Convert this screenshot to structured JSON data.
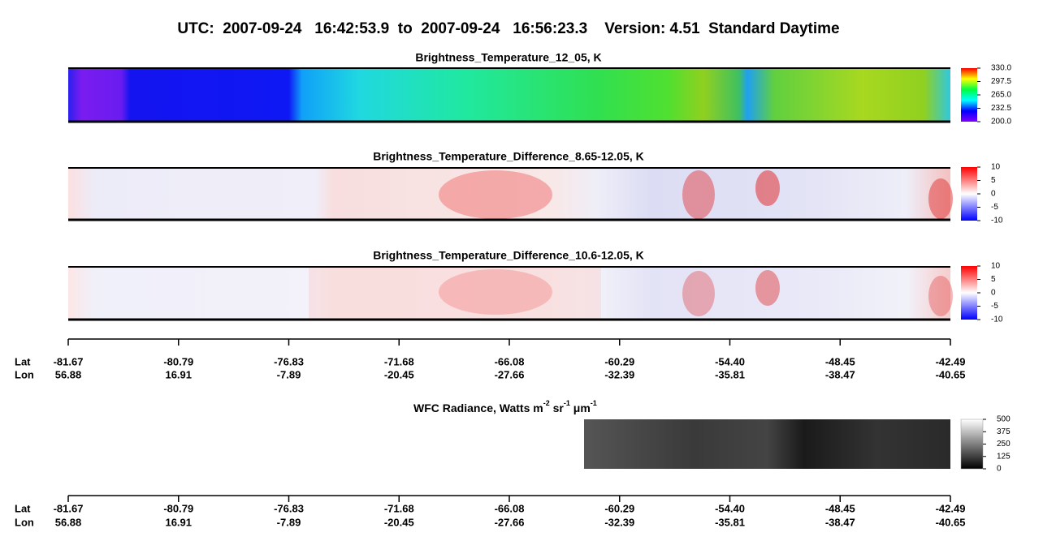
{
  "title": "UTC:  2007-09-24   16:42:53.9  to  2007-09-24   16:56:23.3    Version: 4.51  Standard Daytime",
  "panels": [
    {
      "title": "Brightness_Temperature_12_05, K",
      "colorbar_lim": [
        200,
        330
      ],
      "colorbar_ticks": [
        {
          "value": 200,
          "label": "200.0"
        },
        232.5,
        {
          "value": 265,
          "label": "265.0"
        },
        297.5,
        {
          "value": 330,
          "label": "330.0"
        }
      ]
    },
    {
      "title": "Brightness_Temperature_Difference_8.65-12.05, K",
      "colorbar_lim": [
        -10,
        10
      ],
      "colorbar_ticks": [
        -10,
        -5,
        0,
        5,
        10
      ]
    },
    {
      "title": "Brightness_Temperature_Difference_10.6-12.05, K",
      "colorbar_lim": [
        -10,
        10
      ],
      "colorbar_ticks": [
        -10,
        -5,
        0,
        5,
        10
      ]
    },
    {
      "title_parts": [
        "WFC Radiance, Watts m",
        "-2",
        " sr",
        "-1",
        " μm",
        "-1"
      ],
      "colorbar_lim": [
        0,
        500
      ],
      "colorbar_ticks": [
        0,
        125,
        250,
        375,
        500
      ]
    }
  ],
  "axis": {
    "lat_label": "Lat",
    "lon_label": "Lon",
    "lat": [
      "-81.67",
      "-80.79",
      "-76.83",
      "-71.68",
      "-66.08",
      "-60.29",
      "-54.40",
      "-48.45",
      "-42.49"
    ],
    "lon": [
      "56.88",
      "16.91",
      "-7.89",
      "-20.45",
      "-27.66",
      "-32.39",
      "-35.81",
      "-38.47",
      "-40.65"
    ]
  }
}
